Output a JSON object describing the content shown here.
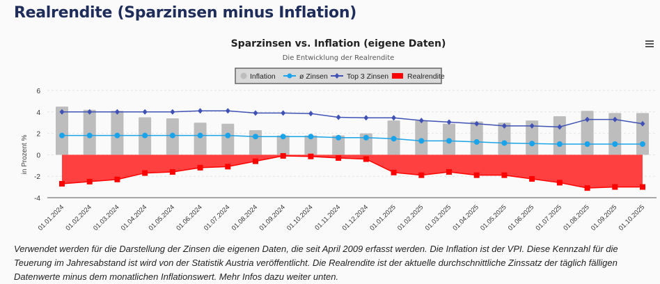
{
  "page": {
    "title": "Realrendite (Sparzinsen minus Inflation)",
    "note": "Verwendet werden für die Darstellung der Zinsen die eigenen Daten, die seit April 2009 erfasst werden. Die Inflation ist der VPI. Diese Kennzahl für die Teuerung im Jahresabstand ist wird von der Statistik Austria veröffentlicht. Die Realrendite ist der aktuelle durchschnittliche Zinssatz der täglich fälligen Datenwerte minus dem monatlichen Inflationswert. Mehr Infos dazu weiter unten.",
    "menu_icon": "hamburger-menu-icon"
  },
  "chart_data": {
    "type": "bar",
    "title": "Sparzinsen vs. Inflation (eigene Daten)",
    "subtitle": "Die Entwicklung der Realrendite",
    "xlabel": "",
    "ylabel": "in Prozent %",
    "ylim": [
      -4,
      6
    ],
    "yticks": [
      6,
      4,
      2,
      0,
      -2,
      -4
    ],
    "grid": true,
    "legend_position": "top-center",
    "categories": [
      "01.01.2024",
      "01.02.2024",
      "01.03.2024",
      "01.04.2024",
      "01.05.2024",
      "01.06.2024",
      "01.07.2024",
      "01.08.2024",
      "01.09.2024",
      "01.10.2024",
      "01.11.2024",
      "01.12.2024",
      "01.01.2025",
      "01.02.2025",
      "01.03.2025",
      "01.04.2025",
      "01.05.2025",
      "01.06.2025",
      "01.07.2025",
      "01.08.2025",
      "01.09.2025",
      "01.10.2025"
    ],
    "series": [
      {
        "name": "Inflation",
        "type": "bar",
        "color": "#bdbdbd",
        "values": [
          4.5,
          4.2,
          4.1,
          3.5,
          3.4,
          3.0,
          2.9,
          2.3,
          1.8,
          1.8,
          1.8,
          2.0,
          3.2,
          3.2,
          2.9,
          3.1,
          3.0,
          3.2,
          3.6,
          4.1,
          3.9,
          3.9
        ]
      },
      {
        "name": "ø Zinsen",
        "type": "line",
        "color": "#1aa3e8",
        "values": [
          1.8,
          1.8,
          1.8,
          1.8,
          1.8,
          1.8,
          1.8,
          1.7,
          1.7,
          1.7,
          1.6,
          1.6,
          1.5,
          1.3,
          1.3,
          1.2,
          1.1,
          1.05,
          1.0,
          1.0,
          1.0,
          1.0
        ]
      },
      {
        "name": "Top 3 Zinsen",
        "type": "line",
        "color": "#3f51b5",
        "values": [
          4.0,
          4.0,
          4.0,
          4.0,
          4.0,
          4.1,
          4.1,
          3.9,
          3.9,
          3.85,
          3.5,
          3.45,
          3.45,
          3.2,
          3.05,
          2.9,
          2.7,
          2.7,
          2.6,
          3.3,
          3.3,
          2.9
        ]
      },
      {
        "name": "Realrendite",
        "type": "area",
        "color": "#ff0000",
        "values": [
          -2.7,
          -2.5,
          -2.3,
          -1.7,
          -1.6,
          -1.2,
          -1.1,
          -0.6,
          -0.1,
          -0.15,
          -0.3,
          -0.4,
          -1.65,
          -1.9,
          -1.6,
          -1.9,
          -1.9,
          -2.25,
          -2.6,
          -3.1,
          -3.0,
          -3.0
        ]
      }
    ]
  }
}
